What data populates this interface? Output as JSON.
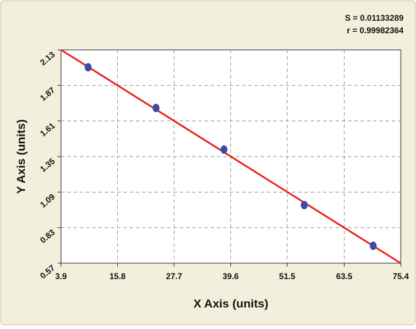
{
  "chart_data": {
    "type": "scatter",
    "annotations": [
      "S = 0.01133289",
      "r = 0.99982364"
    ],
    "xlabel": "X Axis (units)",
    "ylabel": "Y Axis (units)",
    "points": {
      "x": [
        9.6,
        23.9,
        38.2,
        55.1,
        69.6
      ],
      "y": [
        2.003,
        1.705,
        1.401,
        0.995,
        0.697
      ],
      "color": "#3a4aa8"
    },
    "fit": {
      "x": [
        3.9,
        75.4
      ],
      "y": [
        2.13,
        0.57
      ],
      "color": "#e8201c"
    },
    "xlim": [
      3.9,
      75.4
    ],
    "xticks": [
      3.9,
      15.8,
      27.7,
      39.6,
      51.5,
      63.5,
      75.4
    ],
    "ylim": [
      0.57,
      2.13
    ],
    "yticks": [
      0.57,
      0.83,
      1.09,
      1.35,
      1.61,
      1.87,
      2.13
    ],
    "grid": true
  }
}
